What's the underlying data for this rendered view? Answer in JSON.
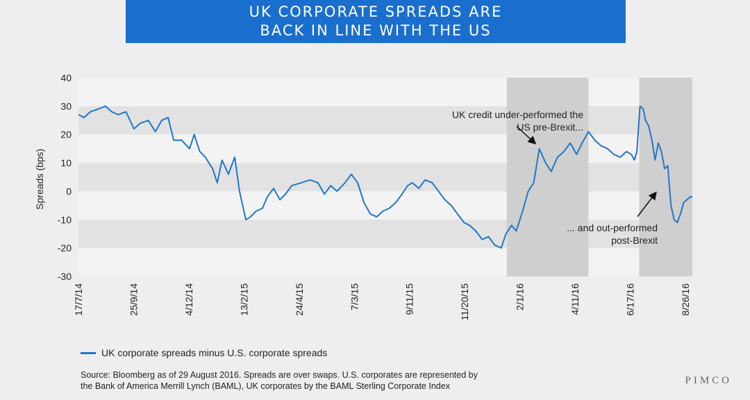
{
  "title": {
    "line1": "UK CORPORATE SPREADS ARE",
    "line2": "BACK IN LINE WITH THE US"
  },
  "logo": "PIMCO",
  "legend_label": "UK corporate spreads minus U.S. corporate spreads",
  "source": {
    "line1": "Source: Bloomberg as of 29 August 2016.  Spreads are over swaps. U.S. corporates are represented by",
    "line2": "the Bank of America Merrill Lynch (BAML), UK corporates by the BAML Sterling Corporate Index"
  },
  "colors": {
    "line": "#1f77c9",
    "title_bg": "#1a6fce",
    "band": "#cfcfcf",
    "stripe": "#e2e2e2"
  },
  "chart_data": {
    "type": "line",
    "ylabel": "Spreads (bps)",
    "ylim": [
      -30,
      40
    ],
    "yticks": [
      40,
      30,
      20,
      10,
      0,
      -10,
      -20,
      -30
    ],
    "xticks": [
      "17/7/14",
      "25/9/14",
      "4/12/14",
      "13/2/15",
      "24/4/15",
      "7/3/15",
      "9/11/15",
      "11/20/15",
      "2/1/16",
      "4/11/16",
      "6/17/16",
      "8/26/16"
    ],
    "highlight_periods": [
      {
        "from": "2016-01-08",
        "to": "2016-04-20"
      },
      {
        "from": "2016-06-23",
        "to": "2016-08-29"
      }
    ],
    "annotations": [
      {
        "text_lines": [
          "UK credit under-performed the",
          "US pre-Brexit..."
        ]
      },
      {
        "text_lines": [
          "... and out-performed",
          "post-Brexit"
        ]
      }
    ],
    "series": [
      {
        "name": "UK corporate spreads minus U.S. corporate spreads",
        "points": [
          [
            "2014-07-17",
            27
          ],
          [
            "2014-07-24",
            26
          ],
          [
            "2014-08-01",
            28
          ],
          [
            "2014-08-11",
            29
          ],
          [
            "2014-08-20",
            30
          ],
          [
            "2014-08-28",
            28
          ],
          [
            "2014-09-05",
            27
          ],
          [
            "2014-09-15",
            28
          ],
          [
            "2014-09-25",
            22
          ],
          [
            "2014-10-03",
            24
          ],
          [
            "2014-10-13",
            25
          ],
          [
            "2014-10-22",
            21
          ],
          [
            "2014-10-30",
            25
          ],
          [
            "2014-11-07",
            26
          ],
          [
            "2014-11-14",
            18
          ],
          [
            "2014-11-24",
            18
          ],
          [
            "2014-12-04",
            15
          ],
          [
            "2014-12-10",
            20
          ],
          [
            "2014-12-17",
            14
          ],
          [
            "2014-12-24",
            12
          ],
          [
            "2015-01-02",
            8
          ],
          [
            "2015-01-08",
            3
          ],
          [
            "2015-01-14",
            11
          ],
          [
            "2015-01-22",
            6
          ],
          [
            "2015-01-30",
            12
          ],
          [
            "2015-02-05",
            0
          ],
          [
            "2015-02-13",
            -10
          ],
          [
            "2015-02-19",
            -9
          ],
          [
            "2015-02-26",
            -7
          ],
          [
            "2015-03-06",
            -6
          ],
          [
            "2015-03-12",
            -2
          ],
          [
            "2015-03-20",
            1
          ],
          [
            "2015-03-28",
            -3
          ],
          [
            "2015-04-04",
            -1
          ],
          [
            "2015-04-12",
            2
          ],
          [
            "2015-04-24",
            3
          ],
          [
            "2015-05-05",
            4
          ],
          [
            "2015-05-15",
            3
          ],
          [
            "2015-05-23",
            -1
          ],
          [
            "2015-05-31",
            2
          ],
          [
            "2015-06-08",
            0
          ],
          [
            "2015-06-18",
            3
          ],
          [
            "2015-06-26",
            6
          ],
          [
            "2015-07-04",
            3
          ],
          [
            "2015-07-12",
            -4
          ],
          [
            "2015-07-20",
            -8
          ],
          [
            "2015-07-28",
            -9
          ],
          [
            "2015-08-05",
            -7
          ],
          [
            "2015-08-13",
            -6
          ],
          [
            "2015-08-21",
            -4
          ],
          [
            "2015-08-29",
            -1
          ],
          [
            "2015-09-05",
            2
          ],
          [
            "2015-09-11",
            3
          ],
          [
            "2015-09-19",
            1
          ],
          [
            "2015-09-27",
            4
          ],
          [
            "2015-10-06",
            3
          ],
          [
            "2015-10-14",
            0
          ],
          [
            "2015-10-22",
            -3
          ],
          [
            "2015-10-30",
            -5
          ],
          [
            "2015-11-07",
            -8
          ],
          [
            "2015-11-15",
            -11
          ],
          [
            "2015-11-22",
            -12
          ],
          [
            "2015-11-30",
            -14
          ],
          [
            "2015-12-08",
            -17
          ],
          [
            "2015-12-16",
            -16
          ],
          [
            "2015-12-24",
            -19
          ],
          [
            "2016-01-01",
            -20
          ],
          [
            "2016-01-07",
            -15
          ],
          [
            "2016-01-14",
            -12
          ],
          [
            "2016-01-20",
            -14
          ],
          [
            "2016-01-28",
            -7
          ],
          [
            "2016-02-04",
            0
          ],
          [
            "2016-02-11",
            3
          ],
          [
            "2016-02-18",
            15
          ],
          [
            "2016-02-26",
            10
          ],
          [
            "2016-03-04",
            7
          ],
          [
            "2016-03-12",
            12
          ],
          [
            "2016-03-20",
            14
          ],
          [
            "2016-03-28",
            17
          ],
          [
            "2016-04-05",
            13
          ],
          [
            "2016-04-12",
            17
          ],
          [
            "2016-04-20",
            21
          ],
          [
            "2016-04-28",
            18
          ],
          [
            "2016-05-06",
            16
          ],
          [
            "2016-05-14",
            15
          ],
          [
            "2016-05-22",
            13
          ],
          [
            "2016-05-30",
            12
          ],
          [
            "2016-06-07",
            14
          ],
          [
            "2016-06-13",
            13
          ],
          [
            "2016-06-17",
            11
          ],
          [
            "2016-06-20",
            14
          ],
          [
            "2016-06-24",
            30
          ],
          [
            "2016-06-28",
            29
          ],
          [
            "2016-07-01",
            25
          ],
          [
            "2016-07-05",
            23
          ],
          [
            "2016-07-09",
            18
          ],
          [
            "2016-07-13",
            11
          ],
          [
            "2016-07-17",
            17
          ],
          [
            "2016-07-21",
            14
          ],
          [
            "2016-07-25",
            8
          ],
          [
            "2016-07-29",
            9
          ],
          [
            "2016-08-02",
            -5
          ],
          [
            "2016-08-06",
            -10
          ],
          [
            "2016-08-10",
            -11
          ],
          [
            "2016-08-14",
            -8
          ],
          [
            "2016-08-18",
            -4
          ],
          [
            "2016-08-22",
            -3
          ],
          [
            "2016-08-26",
            -2
          ],
          [
            "2016-08-29",
            -2
          ]
        ]
      }
    ]
  }
}
